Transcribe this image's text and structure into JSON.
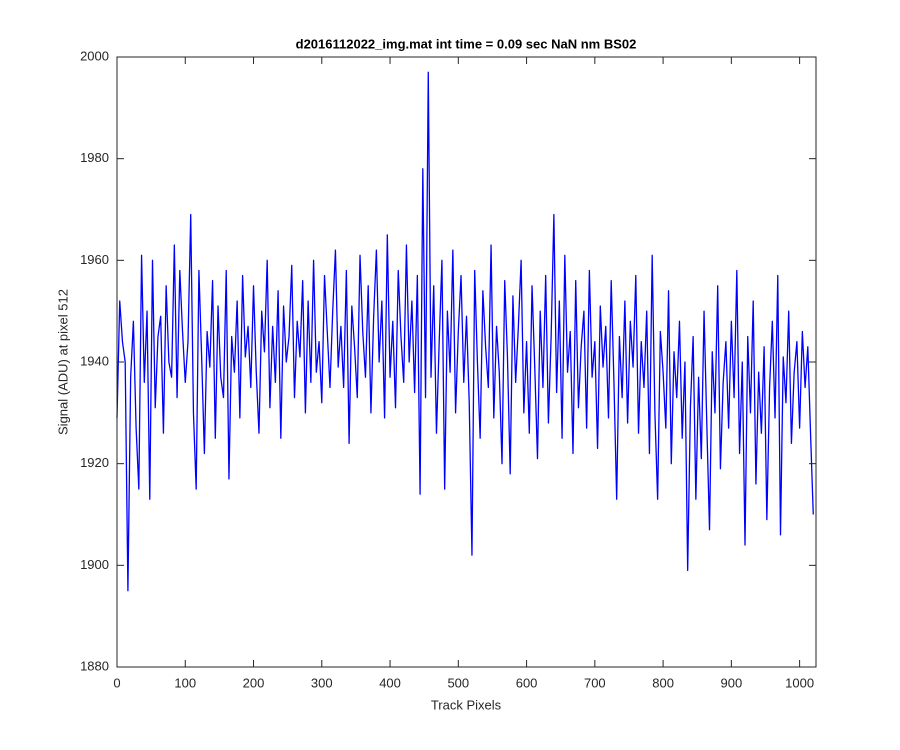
{
  "chart_data": {
    "type": "line",
    "title": "d2016112022_img.mat int time = 0.09 sec  NaN nm BS02",
    "x_label": "Track Pixels",
    "y_label": "Signal (ADU) at pixel 512",
    "color": "#0000ff",
    "xlim": [
      0,
      1024
    ],
    "ylim": [
      1880,
      2000
    ],
    "xticks": [
      0,
      100,
      200,
      300,
      400,
      500,
      600,
      700,
      800,
      900,
      1000
    ],
    "yticks": [
      1880,
      1900,
      1920,
      1940,
      1960,
      1980,
      2000
    ],
    "x": [
      0,
      4,
      8,
      12,
      16,
      20,
      24,
      28,
      32,
      36,
      40,
      44,
      48,
      52,
      56,
      60,
      64,
      68,
      72,
      76,
      80,
      84,
      88,
      92,
      96,
      100,
      104,
      108,
      112,
      116,
      120,
      124,
      128,
      132,
      136,
      140,
      144,
      148,
      152,
      156,
      160,
      164,
      168,
      172,
      176,
      180,
      184,
      188,
      192,
      196,
      200,
      204,
      208,
      212,
      216,
      220,
      224,
      228,
      232,
      236,
      240,
      244,
      248,
      252,
      256,
      260,
      264,
      268,
      272,
      276,
      280,
      284,
      288,
      292,
      296,
      300,
      304,
      308,
      312,
      316,
      320,
      324,
      328,
      332,
      336,
      340,
      344,
      348,
      352,
      356,
      360,
      364,
      368,
      372,
      376,
      380,
      384,
      388,
      392,
      396,
      400,
      404,
      408,
      412,
      416,
      420,
      424,
      428,
      432,
      436,
      440,
      444,
      448,
      452,
      456,
      460,
      464,
      468,
      472,
      476,
      480,
      484,
      488,
      492,
      496,
      500,
      504,
      508,
      512,
      516,
      520,
      524,
      528,
      532,
      536,
      540,
      544,
      548,
      552,
      556,
      560,
      564,
      568,
      572,
      576,
      580,
      584,
      588,
      592,
      596,
      600,
      604,
      608,
      612,
      616,
      620,
      624,
      628,
      632,
      636,
      640,
      644,
      648,
      652,
      656,
      660,
      664,
      668,
      672,
      676,
      680,
      684,
      688,
      692,
      696,
      700,
      704,
      708,
      712,
      716,
      720,
      724,
      728,
      732,
      736,
      740,
      744,
      748,
      752,
      756,
      760,
      764,
      768,
      772,
      776,
      780,
      784,
      788,
      792,
      796,
      800,
      804,
      808,
      812,
      816,
      820,
      824,
      828,
      832,
      836,
      840,
      844,
      848,
      852,
      856,
      860,
      864,
      868,
      872,
      876,
      880,
      884,
      888,
      892,
      896,
      900,
      904,
      908,
      912,
      916,
      920,
      924,
      928,
      932,
      936,
      940,
      944,
      948,
      952,
      956,
      960,
      964,
      968,
      972,
      976,
      980,
      984,
      988,
      992,
      996,
      1000,
      1004,
      1008,
      1012,
      1016,
      1020
    ],
    "values": [
      1929,
      1952,
      1944,
      1940,
      1895,
      1937,
      1948,
      1927,
      1915,
      1961,
      1936,
      1950,
      1913,
      1960,
      1931,
      1945,
      1949,
      1926,
      1955,
      1940,
      1937,
      1963,
      1933,
      1958,
      1946,
      1936,
      1944,
      1969,
      1930,
      1915,
      1958,
      1941,
      1922,
      1946,
      1939,
      1956,
      1925,
      1951,
      1937,
      1933,
      1958,
      1917,
      1945,
      1938,
      1952,
      1929,
      1957,
      1941,
      1947,
      1935,
      1955,
      1938,
      1926,
      1950,
      1942,
      1960,
      1931,
      1947,
      1936,
      1954,
      1925,
      1951,
      1940,
      1945,
      1959,
      1933,
      1948,
      1941,
      1956,
      1930,
      1952,
      1936,
      1960,
      1938,
      1944,
      1932,
      1957,
      1946,
      1935,
      1950,
      1962,
      1939,
      1947,
      1935,
      1958,
      1924,
      1951,
      1943,
      1933,
      1961,
      1946,
      1937,
      1955,
      1930,
      1949,
      1962,
      1940,
      1952,
      1929,
      1965,
      1937,
      1948,
      1931,
      1958,
      1945,
      1936,
      1963,
      1940,
      1952,
      1934,
      1957,
      1914,
      1978,
      1933,
      1997,
      1937,
      1955,
      1926,
      1944,
      1960,
      1915,
      1950,
      1938,
      1962,
      1930,
      1946,
      1957,
      1936,
      1949,
      1932,
      1902,
      1958,
      1940,
      1925,
      1954,
      1943,
      1935,
      1963,
      1929,
      1947,
      1938,
      1920,
      1956,
      1941,
      1918,
      1953,
      1936,
      1947,
      1960,
      1930,
      1944,
      1926,
      1955,
      1939,
      1921,
      1950,
      1935,
      1957,
      1928,
      1945,
      1969,
      1934,
      1952,
      1925,
      1961,
      1938,
      1946,
      1922,
      1956,
      1931,
      1943,
      1950,
      1927,
      1958,
      1937,
      1944,
      1923,
      1951,
      1939,
      1947,
      1929,
      1956,
      1936,
      1913,
      1945,
      1933,
      1952,
      1928,
      1948,
      1939,
      1957,
      1926,
      1944,
      1935,
      1950,
      1922,
      1961,
      1930,
      1913,
      1946,
      1938,
      1927,
      1954,
      1920,
      1942,
      1933,
      1948,
      1925,
      1940,
      1899,
      1931,
      1945,
      1913,
      1937,
      1921,
      1950,
      1928,
      1907,
      1942,
      1930,
      1955,
      1919,
      1936,
      1944,
      1927,
      1948,
      1933,
      1958,
      1922,
      1940,
      1904,
      1945,
      1930,
      1952,
      1916,
      1938,
      1926,
      1943,
      1909,
      1935,
      1948,
      1929,
      1957,
      1906,
      1941,
      1932,
      1950,
      1924,
      1938,
      1944,
      1927,
      1946,
      1935,
      1943,
      1926,
      1910
    ]
  }
}
